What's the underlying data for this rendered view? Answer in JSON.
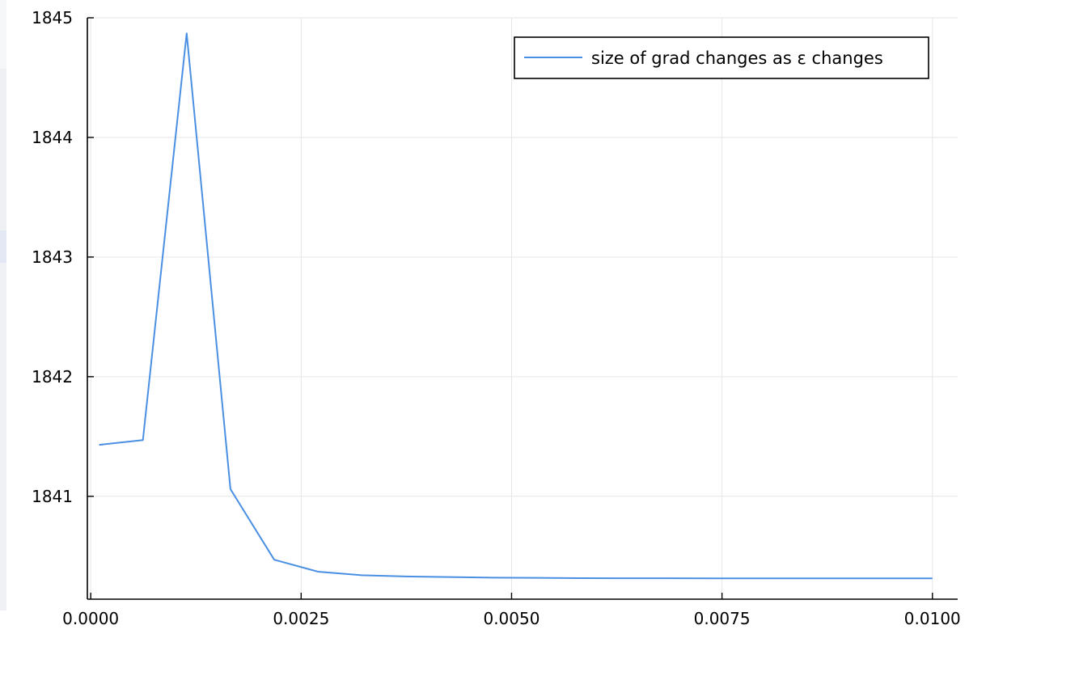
{
  "chart_data": {
    "type": "line",
    "title": "",
    "xlabel": "",
    "ylabel": "",
    "xlim": [
      -4e-05,
      0.0103
    ],
    "ylim": [
      1840.14,
      1845.0
    ],
    "grid": true,
    "legend_position": "top-right",
    "x_ticks": [
      0.0,
      0.0025,
      0.005,
      0.0075,
      0.01
    ],
    "x_tick_labels": [
      "0.0000",
      "0.0025",
      "0.0050",
      "0.0075",
      "0.0100"
    ],
    "y_ticks": [
      1841,
      1842,
      1843,
      1844,
      1845
    ],
    "y_tick_labels": [
      "1841",
      "1842",
      "1843",
      "1844",
      "1845"
    ],
    "series": [
      {
        "name": "size of grad changes as ε changes",
        "color": "#4a90e2",
        "x": [
          0.0001,
          0.00062,
          0.00114,
          0.00166,
          0.00218,
          0.0027,
          0.00322,
          0.00374,
          0.00426,
          0.00478,
          0.0053,
          0.00582,
          0.00634,
          0.00686,
          0.00738,
          0.0079,
          0.00842,
          0.00894,
          0.00946,
          0.01
        ],
        "y": [
          1841.43,
          1841.47,
          1844.87,
          1841.06,
          1840.47,
          1840.37,
          1840.34,
          1840.33,
          1840.325,
          1840.32,
          1840.318,
          1840.316,
          1840.315,
          1840.315,
          1840.314,
          1840.314,
          1840.314,
          1840.314,
          1840.314,
          1840.314
        ]
      }
    ]
  }
}
